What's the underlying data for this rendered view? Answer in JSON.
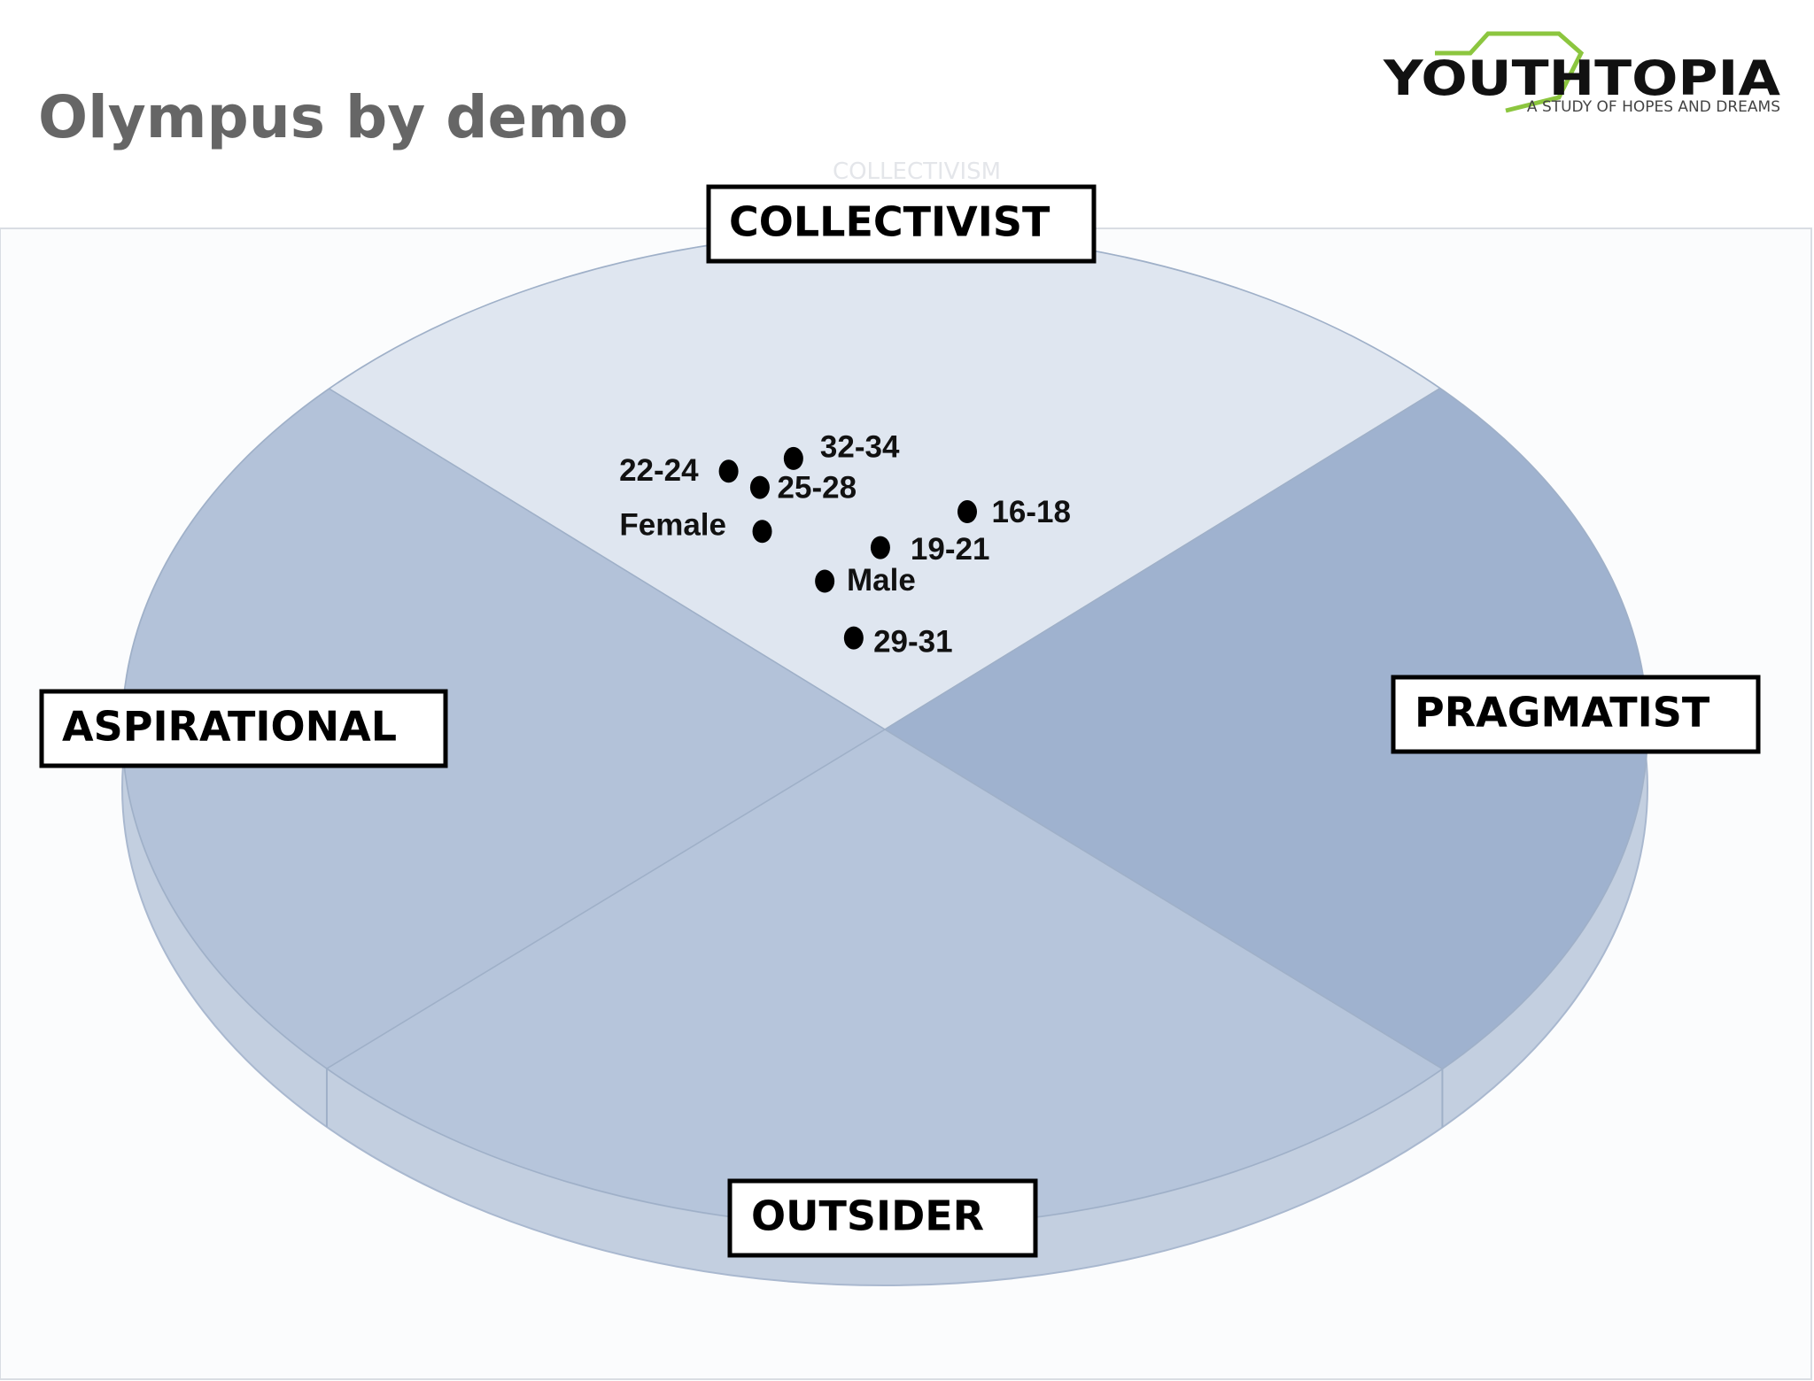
{
  "header": {
    "title": "Olympus by demo"
  },
  "logo": {
    "name": "YOUTHTOPIA",
    "tagline": "A STUDY OF HOPES AND DREAMS"
  },
  "watermark": "COLLECTIVISM",
  "quadrants": {
    "top": "COLLECTIVIST",
    "left": "ASPIRATIONAL",
    "right": "PRAGMATIST",
    "bottom": "OUTSIDER"
  },
  "points": [
    "22-24",
    "32-34",
    "25-28",
    "Female",
    "16-18",
    "19-21",
    "Male",
    "29-31"
  ]
}
